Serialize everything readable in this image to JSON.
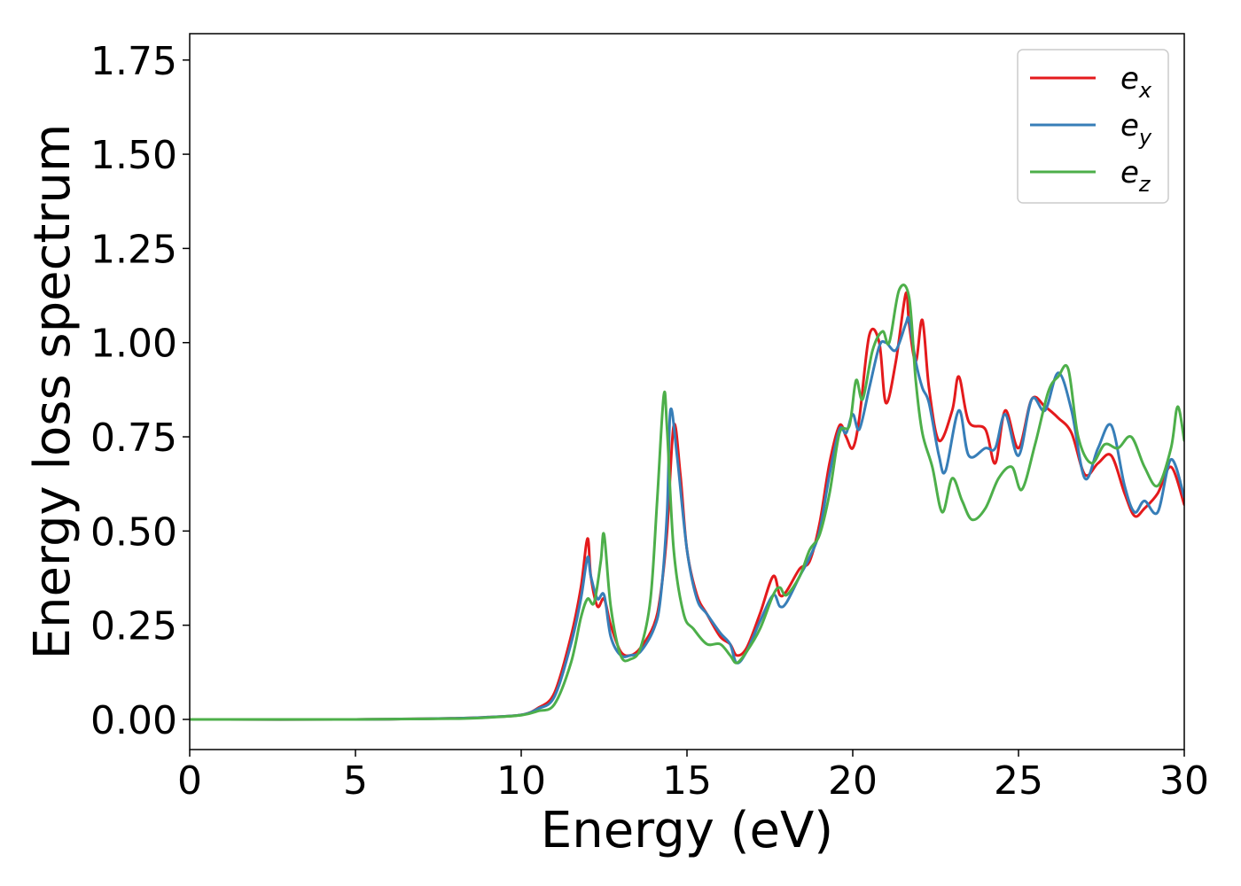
{
  "chart_data": {
    "type": "line",
    "title": "",
    "xlabel": "Energy (eV)",
    "ylabel": "Energy loss spectrum",
    "xlim": [
      0,
      30
    ],
    "ylim": [
      -0.08,
      1.82
    ],
    "xticks": [
      0,
      5,
      10,
      15,
      20,
      25,
      30
    ],
    "xtick_labels": [
      "0",
      "5",
      "10",
      "15",
      "20",
      "25",
      "30"
    ],
    "yticks": [
      0.0,
      0.25,
      0.5,
      0.75,
      1.0,
      1.25,
      1.5,
      1.75
    ],
    "ytick_labels": [
      "0.00",
      "0.25",
      "0.50",
      "0.75",
      "1.00",
      "1.25",
      "1.50",
      "1.75"
    ],
    "grid": false,
    "legend_position": "top-right",
    "series": [
      {
        "name": "e",
        "subscript": "x",
        "color": "#e41a1c",
        "x": [
          0,
          5,
          8,
          9,
          10,
          10.5,
          11,
          11.5,
          11.8,
          12.0,
          12.1,
          12.3,
          12.5,
          12.7,
          13.0,
          13.3,
          13.6,
          14.0,
          14.2,
          14.4,
          14.6,
          14.8,
          15.0,
          15.3,
          15.6,
          16.0,
          16.3,
          16.5,
          16.8,
          17.2,
          17.6,
          17.8,
          18.0,
          18.4,
          18.7,
          19.0,
          19.3,
          19.6,
          19.8,
          20.0,
          20.2,
          20.5,
          20.8,
          21.0,
          21.3,
          21.6,
          21.7,
          21.9,
          22.1,
          22.3,
          22.6,
          23.0,
          23.2,
          23.5,
          24.0,
          24.3,
          24.6,
          25.0,
          25.4,
          25.8,
          26.2,
          26.6,
          27.0,
          27.4,
          27.8,
          28.2,
          28.5,
          28.8,
          29.2,
          29.6,
          30.0
        ],
        "y": [
          0,
          0.0,
          0.003,
          0.006,
          0.012,
          0.03,
          0.07,
          0.22,
          0.35,
          0.48,
          0.38,
          0.3,
          0.32,
          0.25,
          0.18,
          0.17,
          0.19,
          0.25,
          0.33,
          0.5,
          0.78,
          0.65,
          0.45,
          0.33,
          0.28,
          0.22,
          0.2,
          0.17,
          0.19,
          0.28,
          0.38,
          0.33,
          0.34,
          0.4,
          0.42,
          0.52,
          0.68,
          0.78,
          0.75,
          0.72,
          0.8,
          1.02,
          1.0,
          0.84,
          0.95,
          1.13,
          1.05,
          0.95,
          1.06,
          0.88,
          0.74,
          0.82,
          0.91,
          0.79,
          0.77,
          0.68,
          0.82,
          0.72,
          0.85,
          0.83,
          0.8,
          0.76,
          0.65,
          0.68,
          0.7,
          0.6,
          0.54,
          0.56,
          0.6,
          0.67,
          0.57
        ]
      },
      {
        "name": "e",
        "subscript": "y",
        "color": "#377eb8",
        "x": [
          0,
          5,
          8,
          9,
          10,
          10.5,
          11,
          11.5,
          11.8,
          12.0,
          12.1,
          12.3,
          12.5,
          12.7,
          13.0,
          13.3,
          13.6,
          14.0,
          14.2,
          14.4,
          14.5,
          14.7,
          15.0,
          15.3,
          15.6,
          16.0,
          16.3,
          16.5,
          16.8,
          17.2,
          17.6,
          17.8,
          18.0,
          18.4,
          18.7,
          19.0,
          19.3,
          19.6,
          19.8,
          20.0,
          20.2,
          20.5,
          20.8,
          21.0,
          21.3,
          21.6,
          21.7,
          21.9,
          22.1,
          22.3,
          22.6,
          22.8,
          23.2,
          23.5,
          24.0,
          24.3,
          24.6,
          25.0,
          25.4,
          25.8,
          26.2,
          26.6,
          27.0,
          27.4,
          27.8,
          28.2,
          28.5,
          28.8,
          29.2,
          29.6,
          30.0
        ],
        "y": [
          0,
          0.0,
          0.003,
          0.006,
          0.012,
          0.028,
          0.06,
          0.2,
          0.32,
          0.43,
          0.38,
          0.32,
          0.33,
          0.22,
          0.17,
          0.17,
          0.18,
          0.24,
          0.32,
          0.55,
          0.82,
          0.7,
          0.45,
          0.32,
          0.28,
          0.23,
          0.2,
          0.15,
          0.18,
          0.26,
          0.33,
          0.3,
          0.31,
          0.38,
          0.43,
          0.5,
          0.65,
          0.77,
          0.76,
          0.81,
          0.77,
          0.88,
          0.99,
          1.0,
          0.98,
          1.05,
          1.06,
          0.95,
          0.88,
          0.84,
          0.7,
          0.66,
          0.82,
          0.7,
          0.72,
          0.72,
          0.81,
          0.7,
          0.85,
          0.82,
          0.92,
          0.82,
          0.64,
          0.72,
          0.78,
          0.62,
          0.55,
          0.58,
          0.55,
          0.69,
          0.59
        ]
      },
      {
        "name": "e",
        "subscript": "z",
        "color": "#4daf4a",
        "x": [
          0,
          5,
          8,
          9,
          10,
          10.5,
          11,
          11.5,
          11.8,
          12.0,
          12.2,
          12.4,
          12.5,
          12.7,
          13.0,
          13.3,
          13.6,
          13.9,
          14.1,
          14.3,
          14.4,
          14.6,
          14.9,
          15.2,
          15.6,
          16.0,
          16.3,
          16.5,
          16.8,
          17.2,
          17.6,
          17.8,
          18.0,
          18.4,
          18.7,
          19.0,
          19.3,
          19.6,
          19.9,
          20.1,
          20.3,
          20.6,
          20.9,
          21.1,
          21.4,
          21.7,
          21.9,
          22.1,
          22.4,
          22.7,
          23.0,
          23.3,
          23.6,
          24.0,
          24.4,
          24.8,
          25.1,
          25.5,
          25.9,
          26.2,
          26.5,
          26.8,
          27.2,
          27.6,
          28.0,
          28.4,
          28.8,
          29.2,
          29.6,
          29.8,
          30.0
        ],
        "y": [
          0,
          0.0,
          0.002,
          0.005,
          0.011,
          0.022,
          0.04,
          0.15,
          0.27,
          0.32,
          0.31,
          0.42,
          0.49,
          0.3,
          0.17,
          0.16,
          0.19,
          0.32,
          0.58,
          0.86,
          0.77,
          0.45,
          0.28,
          0.24,
          0.2,
          0.2,
          0.17,
          0.15,
          0.18,
          0.24,
          0.33,
          0.35,
          0.33,
          0.38,
          0.45,
          0.49,
          0.6,
          0.76,
          0.78,
          0.9,
          0.85,
          0.98,
          1.03,
          1.0,
          1.14,
          1.12,
          0.9,
          0.76,
          0.67,
          0.55,
          0.64,
          0.58,
          0.53,
          0.56,
          0.64,
          0.67,
          0.61,
          0.73,
          0.87,
          0.91,
          0.93,
          0.75,
          0.68,
          0.73,
          0.72,
          0.75,
          0.67,
          0.62,
          0.72,
          0.83,
          0.74
        ]
      }
    ]
  }
}
